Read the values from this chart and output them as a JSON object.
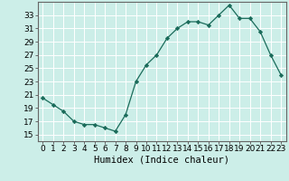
{
  "x": [
    0,
    1,
    2,
    3,
    4,
    5,
    6,
    7,
    8,
    9,
    10,
    11,
    12,
    13,
    14,
    15,
    16,
    17,
    18,
    19,
    20,
    21,
    22,
    23
  ],
  "y": [
    20.5,
    19.5,
    18.5,
    17.0,
    16.5,
    16.5,
    16.0,
    15.5,
    18.0,
    23.0,
    25.5,
    27.0,
    29.5,
    31.0,
    32.0,
    32.0,
    31.5,
    33.0,
    34.5,
    32.5,
    32.5,
    30.5,
    27.0,
    24.0
  ],
  "xlabel": "Humidex (Indice chaleur)",
  "xlim": [
    -0.5,
    23.5
  ],
  "ylim": [
    14.0,
    35.0
  ],
  "yticks": [
    15,
    17,
    19,
    21,
    23,
    25,
    27,
    29,
    31,
    33
  ],
  "xticks": [
    0,
    1,
    2,
    3,
    4,
    5,
    6,
    7,
    8,
    9,
    10,
    11,
    12,
    13,
    14,
    15,
    16,
    17,
    18,
    19,
    20,
    21,
    22,
    23
  ],
  "line_color": "#1a6b5a",
  "marker": "D",
  "marker_size": 2.2,
  "bg_color": "#cceee8",
  "grid_color": "#ffffff",
  "spine_color": "#666666",
  "tick_fontsize": 6.5,
  "xlabel_fontsize": 7.5
}
